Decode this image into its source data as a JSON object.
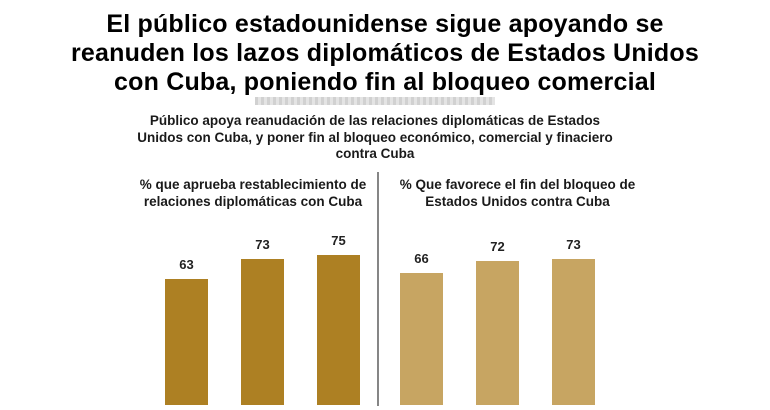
{
  "headline": "El público estadounidense sigue apoyando se reanuden los lazos diplomáticos de Estados Unidos con Cuba, poniendo fin al bloqueo comercial",
  "subtitle": "Público apoya reanudación de las relaciones diplomáticas de Estados Unidos con Cuba, y poner fin al bloqueo económico, comercial y finaciero contra Cuba",
  "colors": {
    "left_bars": "#ad8023",
    "right_bars": "#c7a562",
    "divider": "#444444"
  },
  "chart_data": [
    {
      "type": "bar",
      "title": "% que aprueba restablecimiento de relaciones diplomáticas con Cuba",
      "values": [
        63,
        73,
        75
      ],
      "data_labels": [
        "63",
        "73",
        "75"
      ],
      "color": "#ad8023"
    },
    {
      "type": "bar",
      "title": "% Que favorece el fin del bloqueo de Estados Unidos contra Cuba",
      "values": [
        66,
        72,
        73
      ],
      "data_labels": [
        "66",
        "72",
        "73"
      ],
      "color": "#c7a562"
    }
  ]
}
